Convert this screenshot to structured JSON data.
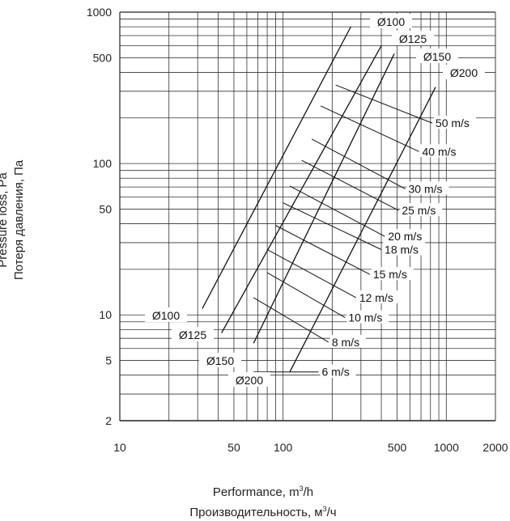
{
  "chart_data": {
    "type": "line",
    "xscale": "log",
    "yscale": "log",
    "xlim": [
      10,
      2000
    ],
    "ylim": [
      2,
      1000
    ],
    "grid": true,
    "xlabel": "Performance, m³/h",
    "xlabel_alt": "Производительность, м³/ч",
    "ylabel": "Pressure loss, Pa",
    "ylabel_alt": "Потеря давления, Па",
    "xticks": [
      10,
      50,
      100,
      500,
      1000,
      2000
    ],
    "xtick_labels": [
      "10",
      "50",
      "100",
      "500",
      "1000",
      "2000"
    ],
    "yticks": [
      2,
      5,
      10,
      50,
      100,
      500,
      1000
    ],
    "ytick_labels": [
      "2",
      "5",
      "10",
      "50",
      "100",
      "500",
      "1000"
    ],
    "series": [
      {
        "name": "Ø100",
        "x": [
          32,
          260
        ],
        "y": [
          11,
          800
        ]
      },
      {
        "name": "Ø125",
        "x": [
          42,
          400
        ],
        "y": [
          7.6,
          600
        ]
      },
      {
        "name": "Ø150",
        "x": [
          66,
          480
        ],
        "y": [
          6.5,
          530
        ]
      },
      {
        "name": "Ø200",
        "x": [
          110,
          860
        ],
        "y": [
          4.2,
          320
        ]
      }
    ],
    "velocity_lines": [
      {
        "label": "6 m/s",
        "from": [
          66,
          4.2
        ],
        "to": [
          165,
          4.2
        ]
      },
      {
        "label": "8 m/s",
        "from": [
          66,
          13
        ],
        "to": [
          190,
          6.6
        ]
      },
      {
        "label": "10 m/s",
        "from": [
          80,
          19
        ],
        "to": [
          240,
          9.6
        ]
      },
      {
        "label": "12 m/s",
        "from": [
          80,
          27
        ],
        "to": [
          280,
          13
        ]
      },
      {
        "label": "15 m/s",
        "from": [
          90,
          39
        ],
        "to": [
          340,
          18.5
        ]
      },
      {
        "label": "18 m/s",
        "from": [
          100,
          55
        ],
        "to": [
          400,
          27
        ]
      },
      {
        "label": "20 m/s",
        "from": [
          110,
          71
        ],
        "to": [
          420,
          33
        ]
      },
      {
        "label": "25 m/s",
        "from": [
          130,
          105
        ],
        "to": [
          510,
          49
        ]
      },
      {
        "label": "30 m/s",
        "from": [
          150,
          145
        ],
        "to": [
          560,
          68
        ]
      },
      {
        "label": "40 m/s",
        "from": [
          170,
          240
        ],
        "to": [
          680,
          120
        ]
      },
      {
        "label": "50 m/s",
        "from": [
          210,
          330
        ],
        "to": [
          820,
          185
        ]
      }
    ],
    "annotations": [
      "Ø100",
      "Ø125",
      "Ø150",
      "Ø200",
      "Ø100",
      "Ø125",
      "Ø150",
      "Ø200"
    ]
  }
}
